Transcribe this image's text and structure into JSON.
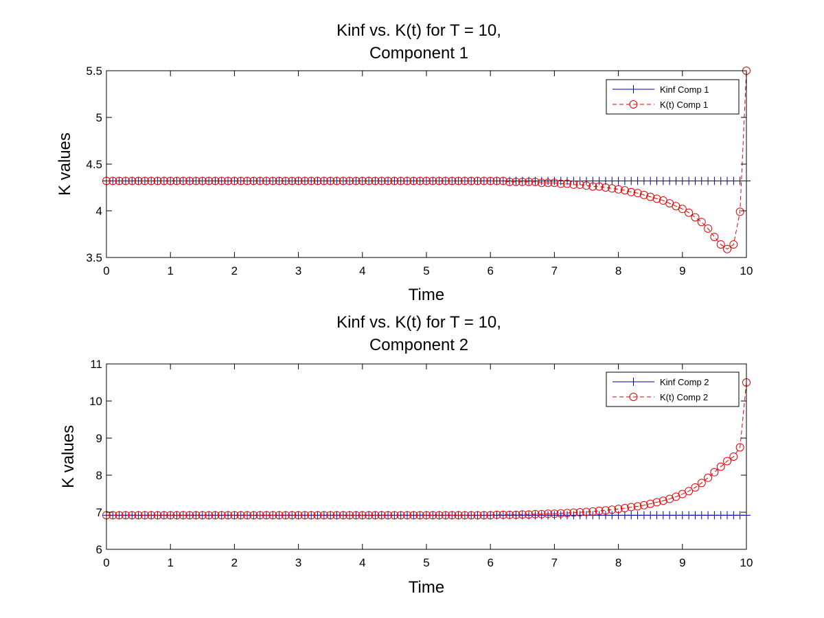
{
  "chart_data": [
    {
      "type": "line",
      "title": [
        "Kinf vs. K(t) for T = 10,",
        "Component 1"
      ],
      "xlabel": "Time",
      "ylabel": "K values",
      "xlim": [
        0,
        10
      ],
      "ylim": [
        3.5,
        5.5
      ],
      "xticks": [
        0,
        1,
        2,
        3,
        4,
        5,
        6,
        7,
        8,
        9,
        10
      ],
      "yticks": [
        3.5,
        4,
        4.5,
        5,
        5.5
      ],
      "ytick_labels": [
        "3.5",
        "4",
        "4.5",
        "5",
        "5.5"
      ],
      "grid": false,
      "legend_position": "top-right",
      "series": [
        {
          "name": "Kinf Comp 1",
          "color": "#0000a0",
          "style": "solid",
          "marker": "plus",
          "x_start": 0,
          "x_end": 10,
          "x_step": 0.1,
          "constant": 4.32
        },
        {
          "name": "K(t) Comp 1",
          "color": "#e00000",
          "style": "dashed",
          "marker": "circle",
          "x_start": 0,
          "x_end": 10,
          "x_step": 0.1,
          "values": [
            4.32,
            4.32,
            4.32,
            4.32,
            4.32,
            4.32,
            4.32,
            4.32,
            4.32,
            4.32,
            4.32,
            4.32,
            4.32,
            4.32,
            4.32,
            4.32,
            4.32,
            4.32,
            4.32,
            4.32,
            4.32,
            4.32,
            4.32,
            4.32,
            4.32,
            4.32,
            4.32,
            4.32,
            4.32,
            4.32,
            4.32,
            4.32,
            4.32,
            4.32,
            4.32,
            4.32,
            4.32,
            4.32,
            4.32,
            4.32,
            4.32,
            4.32,
            4.32,
            4.32,
            4.32,
            4.32,
            4.32,
            4.32,
            4.32,
            4.32,
            4.32,
            4.32,
            4.32,
            4.32,
            4.32,
            4.32,
            4.32,
            4.32,
            4.32,
            4.32,
            4.32,
            4.32,
            4.32,
            4.31,
            4.31,
            4.31,
            4.31,
            4.31,
            4.3,
            4.3,
            4.3,
            4.29,
            4.29,
            4.28,
            4.28,
            4.27,
            4.26,
            4.26,
            4.25,
            4.24,
            4.23,
            4.22,
            4.2,
            4.19,
            4.17,
            4.15,
            4.13,
            4.11,
            4.08,
            4.05,
            4.02,
            3.98,
            3.93,
            3.88,
            3.81,
            3.72,
            3.64,
            3.59,
            3.64,
            3.99,
            5.5
          ]
        }
      ]
    },
    {
      "type": "line",
      "title": [
        "Kinf vs. K(t) for T = 10,",
        "Component 2"
      ],
      "xlabel": "Time",
      "ylabel": "K values",
      "xlim": [
        0,
        10
      ],
      "ylim": [
        6,
        11
      ],
      "xticks": [
        0,
        1,
        2,
        3,
        4,
        5,
        6,
        7,
        8,
        9,
        10
      ],
      "yticks": [
        6,
        7,
        8,
        9,
        10,
        11
      ],
      "ytick_labels": [
        "6",
        "7",
        "8",
        "9",
        "10",
        "11"
      ],
      "grid": false,
      "legend_position": "top-right",
      "series": [
        {
          "name": "Kinf Comp 2",
          "color": "#0000a0",
          "style": "solid",
          "marker": "plus",
          "x_start": 0,
          "x_end": 10,
          "x_step": 0.1,
          "constant": 6.92
        },
        {
          "name": "K(t) Comp 2",
          "color": "#e00000",
          "style": "dashed",
          "marker": "circle",
          "x_start": 0,
          "x_end": 10,
          "x_step": 0.1,
          "values": [
            6.92,
            6.92,
            6.92,
            6.92,
            6.92,
            6.92,
            6.92,
            6.92,
            6.92,
            6.92,
            6.92,
            6.92,
            6.92,
            6.92,
            6.92,
            6.92,
            6.92,
            6.92,
            6.92,
            6.92,
            6.92,
            6.92,
            6.92,
            6.92,
            6.92,
            6.92,
            6.92,
            6.92,
            6.92,
            6.92,
            6.92,
            6.92,
            6.92,
            6.92,
            6.92,
            6.92,
            6.92,
            6.92,
            6.92,
            6.92,
            6.92,
            6.92,
            6.92,
            6.92,
            6.92,
            6.92,
            6.92,
            6.92,
            6.92,
            6.92,
            6.92,
            6.92,
            6.92,
            6.92,
            6.92,
            6.92,
            6.92,
            6.92,
            6.92,
            6.92,
            6.92,
            6.93,
            6.93,
            6.93,
            6.93,
            6.94,
            6.94,
            6.95,
            6.95,
            6.96,
            6.96,
            6.97,
            6.98,
            6.99,
            7.0,
            7.01,
            7.02,
            7.04,
            7.05,
            7.07,
            7.09,
            7.11,
            7.14,
            7.16,
            7.19,
            7.23,
            7.27,
            7.31,
            7.36,
            7.42,
            7.49,
            7.57,
            7.67,
            7.79,
            7.93,
            8.08,
            8.23,
            8.38,
            8.5,
            8.75,
            10.5
          ]
        }
      ]
    }
  ]
}
